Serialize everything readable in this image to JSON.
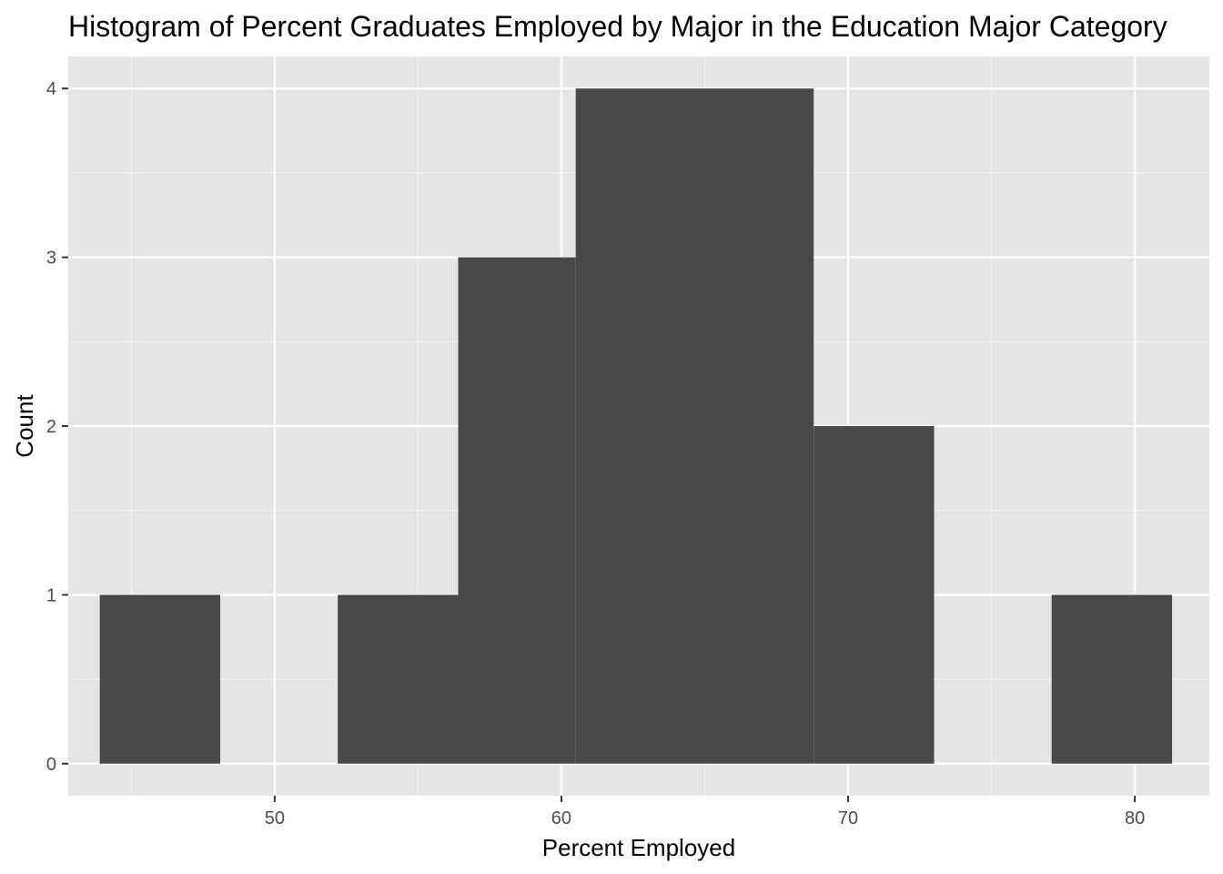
{
  "chart_data": {
    "type": "histogram",
    "title": "Histogram of Percent Graduates Employed by Major in the Education Major Category",
    "xlabel": "Percent Employed",
    "ylabel": "Count",
    "xlim": [
      42.8,
      82.6
    ],
    "ylim": [
      -0.19,
      4.19
    ],
    "x_ticks": [
      50,
      60,
      70,
      80
    ],
    "x_tick_labels": [
      "50",
      "60",
      "70",
      "80"
    ],
    "y_ticks": [
      0,
      1,
      2,
      3,
      4
    ],
    "y_tick_labels": [
      "0",
      "1",
      "2",
      "3",
      "4"
    ],
    "bins": [
      {
        "x0": 43.9,
        "x1": 48.1,
        "count": 1
      },
      {
        "x0": 48.1,
        "x1": 52.2,
        "count": 0
      },
      {
        "x0": 52.2,
        "x1": 56.4,
        "count": 1
      },
      {
        "x0": 56.4,
        "x1": 60.5,
        "count": 3
      },
      {
        "x0": 60.5,
        "x1": 64.7,
        "count": 4
      },
      {
        "x0": 64.7,
        "x1": 68.8,
        "count": 4
      },
      {
        "x0": 68.8,
        "x1": 73.0,
        "count": 2
      },
      {
        "x0": 73.0,
        "x1": 77.1,
        "count": 0
      },
      {
        "x0": 77.1,
        "x1": 81.3,
        "count": 1
      }
    ],
    "grid": true,
    "colors": {
      "panel_background": "#e5e5e5",
      "grid_major": "#ffffff",
      "grid_minor": "#f2f2f2",
      "bar_fill": "#494949",
      "tick_color": "#333333"
    }
  }
}
